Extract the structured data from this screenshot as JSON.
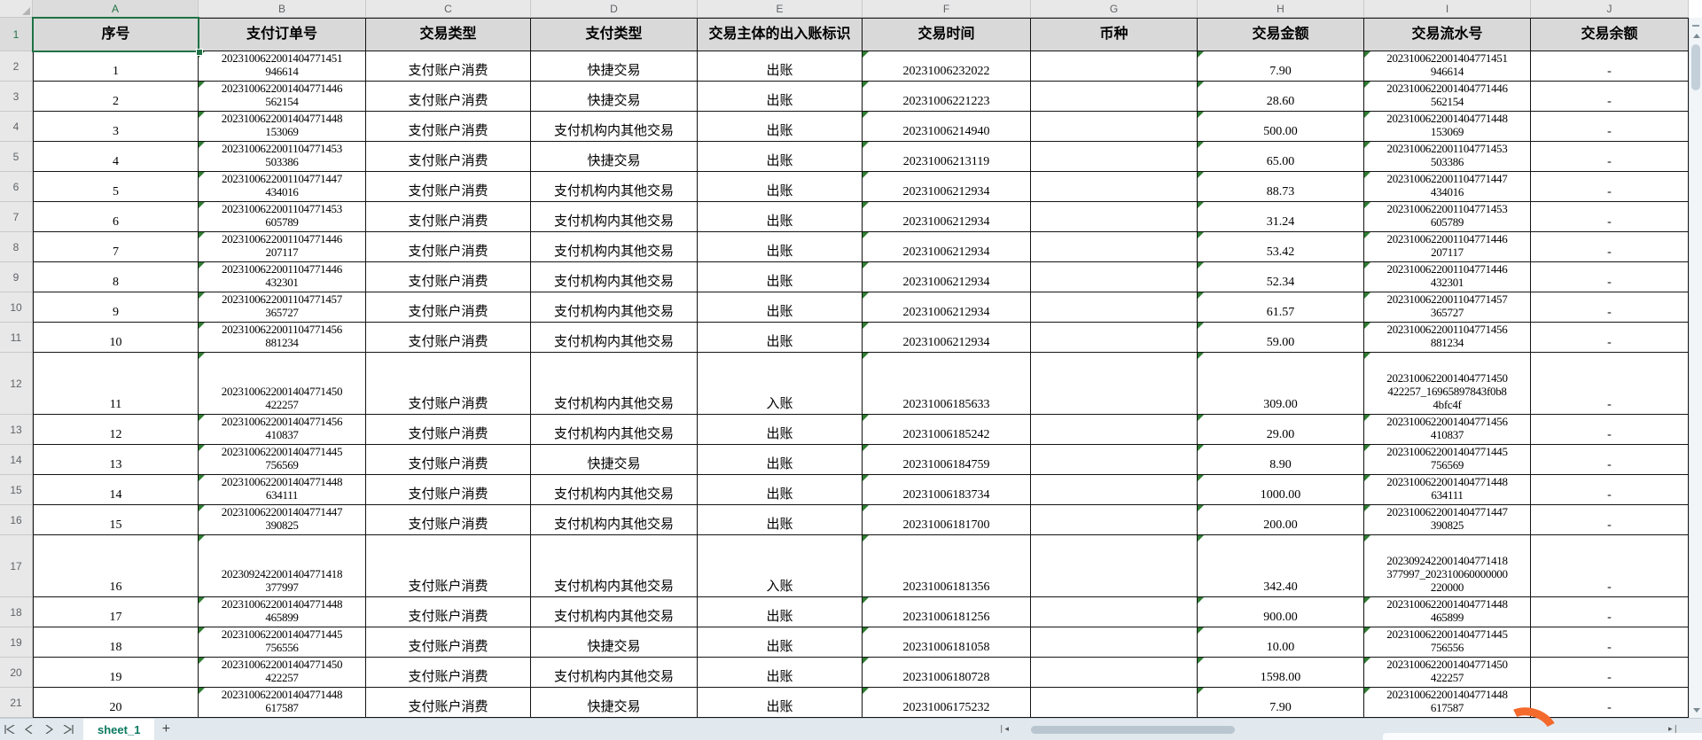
{
  "sheet": {
    "selected_cell": "A1",
    "column_letters": [
      "A",
      "B",
      "C",
      "D",
      "E",
      "F",
      "G",
      "H",
      "I",
      "J"
    ],
    "headers": [
      "序号",
      "支付订单号",
      "交易类型",
      "支付类型",
      "交易主体的出入账标识",
      "交易时间",
      "币种",
      "交易金额",
      "交易流水号",
      "交易余额"
    ],
    "row_labels": [
      "1",
      "2",
      "3",
      "4",
      "5",
      "6",
      "7",
      "8",
      "9",
      "10",
      "11",
      "12",
      "13",
      "14",
      "15",
      "16",
      "17",
      "18",
      "19",
      "20",
      "21"
    ],
    "rows": [
      {
        "seq": "1",
        "order_lines": [
          "2023100622001404771451",
          "946614"
        ],
        "txn_type": "支付账户消费",
        "pay_type": "快捷交易",
        "direction": "出账",
        "time": "20231006232022",
        "currency": "",
        "amount": "7.90",
        "serial_lines": [
          "2023100622001404771451",
          "946614"
        ],
        "balance": "-",
        "tall": false
      },
      {
        "seq": "2",
        "order_lines": [
          "2023100622001404771446",
          "562154"
        ],
        "txn_type": "支付账户消费",
        "pay_type": "快捷交易",
        "direction": "出账",
        "time": "20231006221223",
        "currency": "",
        "amount": "28.60",
        "serial_lines": [
          "2023100622001404771446",
          "562154"
        ],
        "balance": "-",
        "tall": false
      },
      {
        "seq": "3",
        "order_lines": [
          "2023100622001404771448",
          "153069"
        ],
        "txn_type": "支付账户消费",
        "pay_type": "支付机构内其他交易",
        "direction": "出账",
        "time": "20231006214940",
        "currency": "",
        "amount": "500.00",
        "serial_lines": [
          "2023100622001404771448",
          "153069"
        ],
        "balance": "-",
        "tall": false
      },
      {
        "seq": "4",
        "order_lines": [
          "2023100622001104771453",
          "503386"
        ],
        "txn_type": "支付账户消费",
        "pay_type": "快捷交易",
        "direction": "出账",
        "time": "20231006213119",
        "currency": "",
        "amount": "65.00",
        "serial_lines": [
          "2023100622001104771453",
          "503386"
        ],
        "balance": "-",
        "tall": false
      },
      {
        "seq": "5",
        "order_lines": [
          "2023100622001104771447",
          "434016"
        ],
        "txn_type": "支付账户消费",
        "pay_type": "支付机构内其他交易",
        "direction": "出账",
        "time": "20231006212934",
        "currency": "",
        "amount": "88.73",
        "serial_lines": [
          "2023100622001104771447",
          "434016"
        ],
        "balance": "-",
        "tall": false
      },
      {
        "seq": "6",
        "order_lines": [
          "2023100622001104771453",
          "605789"
        ],
        "txn_type": "支付账户消费",
        "pay_type": "支付机构内其他交易",
        "direction": "出账",
        "time": "20231006212934",
        "currency": "",
        "amount": "31.24",
        "serial_lines": [
          "2023100622001104771453",
          "605789"
        ],
        "balance": "-",
        "tall": false
      },
      {
        "seq": "7",
        "order_lines": [
          "2023100622001104771446",
          "207117"
        ],
        "txn_type": "支付账户消费",
        "pay_type": "支付机构内其他交易",
        "direction": "出账",
        "time": "20231006212934",
        "currency": "",
        "amount": "53.42",
        "serial_lines": [
          "2023100622001104771446",
          "207117"
        ],
        "balance": "-",
        "tall": false
      },
      {
        "seq": "8",
        "order_lines": [
          "2023100622001104771446",
          "432301"
        ],
        "txn_type": "支付账户消费",
        "pay_type": "支付机构内其他交易",
        "direction": "出账",
        "time": "20231006212934",
        "currency": "",
        "amount": "52.34",
        "serial_lines": [
          "2023100622001104771446",
          "432301"
        ],
        "balance": "-",
        "tall": false
      },
      {
        "seq": "9",
        "order_lines": [
          "2023100622001104771457",
          "365727"
        ],
        "txn_type": "支付账户消费",
        "pay_type": "支付机构内其他交易",
        "direction": "出账",
        "time": "20231006212934",
        "currency": "",
        "amount": "61.57",
        "serial_lines": [
          "2023100622001104771457",
          "365727"
        ],
        "balance": "-",
        "tall": false
      },
      {
        "seq": "10",
        "order_lines": [
          "2023100622001104771456",
          "881234"
        ],
        "txn_type": "支付账户消费",
        "pay_type": "支付机构内其他交易",
        "direction": "出账",
        "time": "20231006212934",
        "currency": "",
        "amount": "59.00",
        "serial_lines": [
          "2023100622001104771456",
          "881234"
        ],
        "balance": "-",
        "tall": false
      },
      {
        "seq": "11",
        "order_lines": [
          "2023100622001404771450",
          "422257"
        ],
        "txn_type": "支付账户消费",
        "pay_type": "支付机构内其他交易",
        "direction": "入账",
        "time": "20231006185633",
        "currency": "",
        "amount": "309.00",
        "serial_lines": [
          "2023100622001404771450",
          "422257_16965897843f0b8",
          "4bfc4f"
        ],
        "balance": "-",
        "tall": true
      },
      {
        "seq": "12",
        "order_lines": [
          "2023100622001404771456",
          "410837"
        ],
        "txn_type": "支付账户消费",
        "pay_type": "支付机构内其他交易",
        "direction": "出账",
        "time": "20231006185242",
        "currency": "",
        "amount": "29.00",
        "serial_lines": [
          "2023100622001404771456",
          "410837"
        ],
        "balance": "-",
        "tall": false
      },
      {
        "seq": "13",
        "order_lines": [
          "2023100622001404771445",
          "756569"
        ],
        "txn_type": "支付账户消费",
        "pay_type": "快捷交易",
        "direction": "出账",
        "time": "20231006184759",
        "currency": "",
        "amount": "8.90",
        "serial_lines": [
          "2023100622001404771445",
          "756569"
        ],
        "balance": "-",
        "tall": false
      },
      {
        "seq": "14",
        "order_lines": [
          "2023100622001404771448",
          "634111"
        ],
        "txn_type": "支付账户消费",
        "pay_type": "支付机构内其他交易",
        "direction": "出账",
        "time": "20231006183734",
        "currency": "",
        "amount": "1000.00",
        "serial_lines": [
          "2023100622001404771448",
          "634111"
        ],
        "balance": "-",
        "tall": false
      },
      {
        "seq": "15",
        "order_lines": [
          "2023100622001404771447",
          "390825"
        ],
        "txn_type": "支付账户消费",
        "pay_type": "支付机构内其他交易",
        "direction": "出账",
        "time": "20231006181700",
        "currency": "",
        "amount": "200.00",
        "serial_lines": [
          "2023100622001404771447",
          "390825"
        ],
        "balance": "-",
        "tall": false
      },
      {
        "seq": "16",
        "order_lines": [
          "2023092422001404771418",
          "377997"
        ],
        "txn_type": "支付账户消费",
        "pay_type": "支付机构内其他交易",
        "direction": "入账",
        "time": "20231006181356",
        "currency": "",
        "amount": "342.40",
        "serial_lines": [
          "2023092422001404771418",
          "377997_202310060000000",
          "220000"
        ],
        "balance": "-",
        "tall": true
      },
      {
        "seq": "17",
        "order_lines": [
          "2023100622001404771448",
          "465899"
        ],
        "txn_type": "支付账户消费",
        "pay_type": "支付机构内其他交易",
        "direction": "出账",
        "time": "20231006181256",
        "currency": "",
        "amount": "900.00",
        "serial_lines": [
          "2023100622001404771448",
          "465899"
        ],
        "balance": "-",
        "tall": false
      },
      {
        "seq": "18",
        "order_lines": [
          "2023100622001404771445",
          "756556"
        ],
        "txn_type": "支付账户消费",
        "pay_type": "快捷交易",
        "direction": "出账",
        "time": "20231006181058",
        "currency": "",
        "amount": "10.00",
        "serial_lines": [
          "2023100622001404771445",
          "756556"
        ],
        "balance": "-",
        "tall": false
      },
      {
        "seq": "19",
        "order_lines": [
          "2023100622001404771450",
          "422257"
        ],
        "txn_type": "支付账户消费",
        "pay_type": "支付机构内其他交易",
        "direction": "出账",
        "time": "20231006180728",
        "currency": "",
        "amount": "1598.00",
        "serial_lines": [
          "2023100622001404771450",
          "422257"
        ],
        "balance": "-",
        "tall": false
      },
      {
        "seq": "20",
        "order_lines": [
          "2023100622001404771448",
          "617587"
        ],
        "txn_type": "支付账户消费",
        "pay_type": "快捷交易",
        "direction": "出账",
        "time": "20231006175232",
        "currency": "",
        "amount": "7.90",
        "serial_lines": [
          "2023100622001404771448",
          "617587"
        ],
        "balance": "-",
        "tall": false
      }
    ],
    "tab": {
      "name": "sheet_1",
      "add_label": "+"
    },
    "colors": {
      "selection": "#1e7145",
      "indicator_triangle": "#2f7d32",
      "tab_text": "#0c7a60",
      "header_bg": "#d9d9d9",
      "accent_orange": "#f4692c"
    }
  }
}
